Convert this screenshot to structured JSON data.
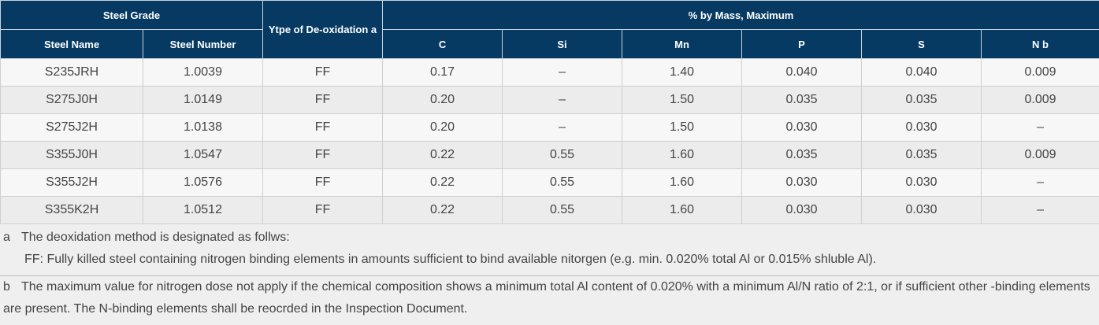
{
  "header": {
    "steel_grade": "Steel Grade",
    "deoxidation": "Ytpe of De-oxidation a",
    "mass_max": "% by Mass, Maximum",
    "steel_name": "Steel Name",
    "steel_number": "Steel Number",
    "c": "C",
    "si": "Si",
    "mn": "Mn",
    "p": "P",
    "s": "S",
    "nb": "N b"
  },
  "rows": [
    {
      "name": "S235JRH",
      "number": "1.0039",
      "deox": "FF",
      "c": "0.17",
      "si": "–",
      "mn": "1.40",
      "p": "0.040",
      "s": "0.040",
      "nb": "0.009"
    },
    {
      "name": "S275J0H",
      "number": "1.0149",
      "deox": "FF",
      "c": "0.20",
      "si": "–",
      "mn": "1.50",
      "p": "0.035",
      "s": "0.035",
      "nb": "0.009"
    },
    {
      "name": "S275J2H",
      "number": "1.0138",
      "deox": "FF",
      "c": "0.20",
      "si": "–",
      "mn": "1.50",
      "p": "0.030",
      "s": "0.030",
      "nb": "–"
    },
    {
      "name": "S355J0H",
      "number": "1.0547",
      "deox": "FF",
      "c": "0.22",
      "si": "0.55",
      "mn": "1.60",
      "p": "0.035",
      "s": "0.035",
      "nb": "0.009"
    },
    {
      "name": "S355J2H",
      "number": "1.0576",
      "deox": "FF",
      "c": "0.22",
      "si": "0.55",
      "mn": "1.60",
      "p": "0.030",
      "s": "0.030",
      "nb": "–"
    },
    {
      "name": "S355K2H",
      "number": "1.0512",
      "deox": "FF",
      "c": "0.22",
      "si": "0.55",
      "mn": "1.60",
      "p": "0.030",
      "s": "0.030",
      "nb": "–"
    }
  ],
  "notes": {
    "a_tag": "a",
    "a_line1": "The deoxidation method is designated as follws:",
    "a_line2": "FF: Fully killed steel containing nitrogen binding elements in amounts sufficient to bind available nitorgen (e.g. min. 0.020% total Al or 0.015% shluble Al).",
    "b_tag": "b",
    "b_text": "The maximum value for nitrogen dose not apply if the chemical composition shows a minimum total Al content of 0.020% with a minimum Al/N ratio of 2:1, or if sufficient other -binding elements are present. The N-binding elements shall be reocrded in the Inspection Document."
  }
}
